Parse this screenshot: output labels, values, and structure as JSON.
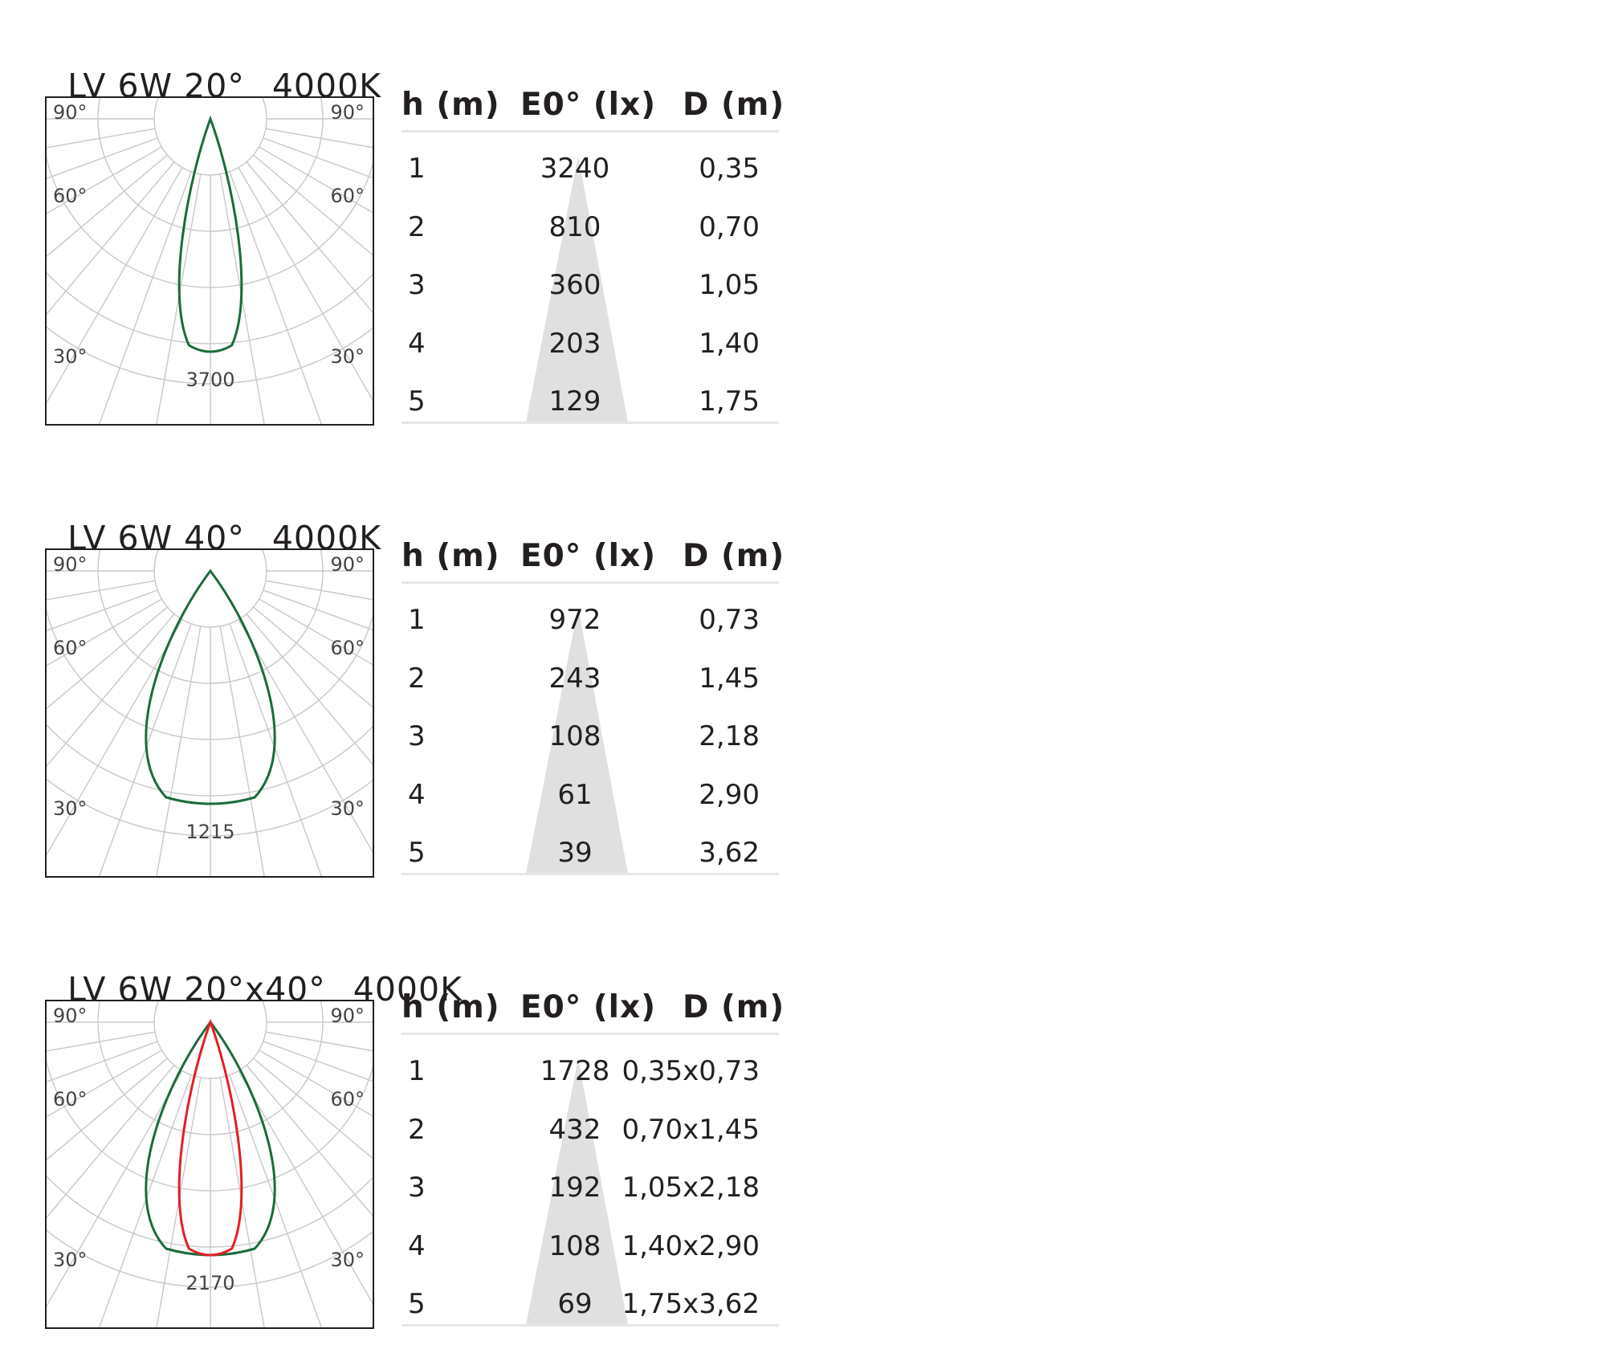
{
  "headers": {
    "h": "h (m)",
    "e": "E0° (lx)",
    "d": "D (m)"
  },
  "sections": [
    {
      "title": "LV 6W 20°",
      "cct": "4000K",
      "polar": {
        "peak_label": "3700",
        "angle_labels": [
          "90°",
          "90°",
          "60°",
          "60°",
          "30°",
          "30°"
        ],
        "curves": [
          {
            "color": "#1b6b3a",
            "half_beam_deg": 10
          }
        ]
      },
      "rows": [
        {
          "h": "1",
          "e": "3240",
          "d": "0,35"
        },
        {
          "h": "2",
          "e": "810",
          "d": "0,70"
        },
        {
          "h": "3",
          "e": "360",
          "d": "1,05"
        },
        {
          "h": "4",
          "e": "203",
          "d": "1,40"
        },
        {
          "h": "5",
          "e": "129",
          "d": "1,75"
        }
      ]
    },
    {
      "title": "LV 6W 40°",
      "cct": "4000K",
      "polar": {
        "peak_label": "1215",
        "angle_labels": [
          "90°",
          "90°",
          "60°",
          "60°",
          "30°",
          "30°"
        ],
        "curves": [
          {
            "color": "#1b6b3a",
            "half_beam_deg": 20
          }
        ]
      },
      "rows": [
        {
          "h": "1",
          "e": "972",
          "d": "0,73"
        },
        {
          "h": "2",
          "e": "243",
          "d": "1,45"
        },
        {
          "h": "3",
          "e": "108",
          "d": "2,18"
        },
        {
          "h": "4",
          "e": "61",
          "d": "2,90"
        },
        {
          "h": "5",
          "e": "39",
          "d": "3,62"
        }
      ]
    },
    {
      "title": "LV 6W 20°x40°",
      "cct": "4000K",
      "polar": {
        "peak_label": "2170",
        "angle_labels": [
          "90°",
          "90°",
          "60°",
          "60°",
          "30°",
          "30°"
        ],
        "curves": [
          {
            "color": "#1b6b3a",
            "half_beam_deg": 20
          },
          {
            "color": "#e31e24",
            "half_beam_deg": 10
          }
        ]
      },
      "rows": [
        {
          "h": "1",
          "e": "1728",
          "d": "0,35x0,73"
        },
        {
          "h": "2",
          "e": "432",
          "d": "0,70x1,45"
        },
        {
          "h": "3",
          "e": "192",
          "d": "1,05x2,18"
        },
        {
          "h": "4",
          "e": "108",
          "d": "1,40x2,90"
        },
        {
          "h": "5",
          "e": "69",
          "d": "1,75x3,62"
        }
      ]
    }
  ]
}
